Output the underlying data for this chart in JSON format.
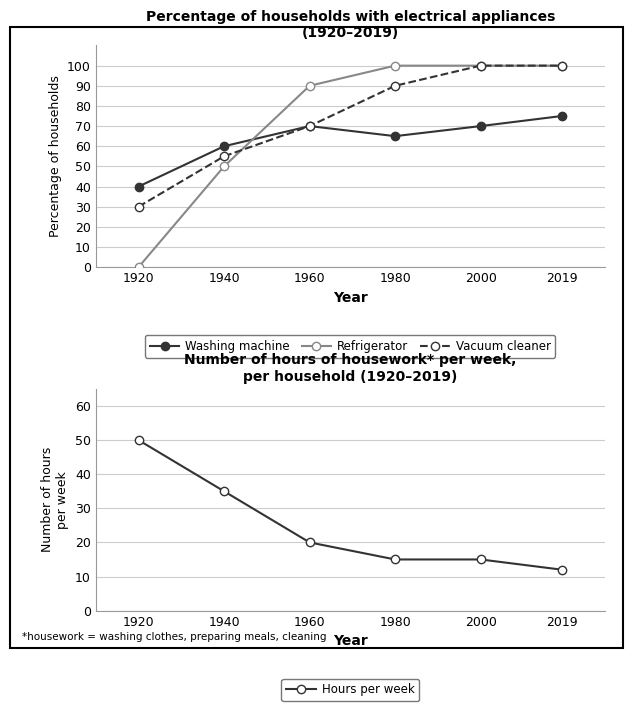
{
  "years": [
    1920,
    1940,
    1960,
    1980,
    2000,
    2019
  ],
  "washing_machine": [
    40,
    60,
    70,
    65,
    70,
    75
  ],
  "refrigerator": [
    0,
    50,
    90,
    100,
    100,
    100
  ],
  "vacuum_cleaner": [
    30,
    55,
    70,
    90,
    100,
    100
  ],
  "hours_per_week": [
    50,
    35,
    20,
    15,
    15,
    12
  ],
  "chart1_title": "Percentage of households with electrical appliances\n(1920–2019)",
  "chart1_ylabel": "Percentage of households",
  "chart1_xlabel": "Year",
  "chart1_ylim": [
    0,
    110
  ],
  "chart1_yticks": [
    0,
    10,
    20,
    30,
    40,
    50,
    60,
    70,
    80,
    90,
    100
  ],
  "chart2_title": "Number of hours of housework* per week,\nper household (1920–2019)",
  "chart2_ylabel": "Number of hours\nper week",
  "chart2_xlabel": "Year",
  "chart2_ylim": [
    0,
    65
  ],
  "chart2_yticks": [
    0,
    10,
    20,
    30,
    40,
    50,
    60
  ],
  "footnote": "*housework = washing clothes, preparing meals, cleaning",
  "color_dark": "#333333",
  "color_light": "#888888",
  "bg_color": "#ffffff",
  "border_color": "#000000"
}
